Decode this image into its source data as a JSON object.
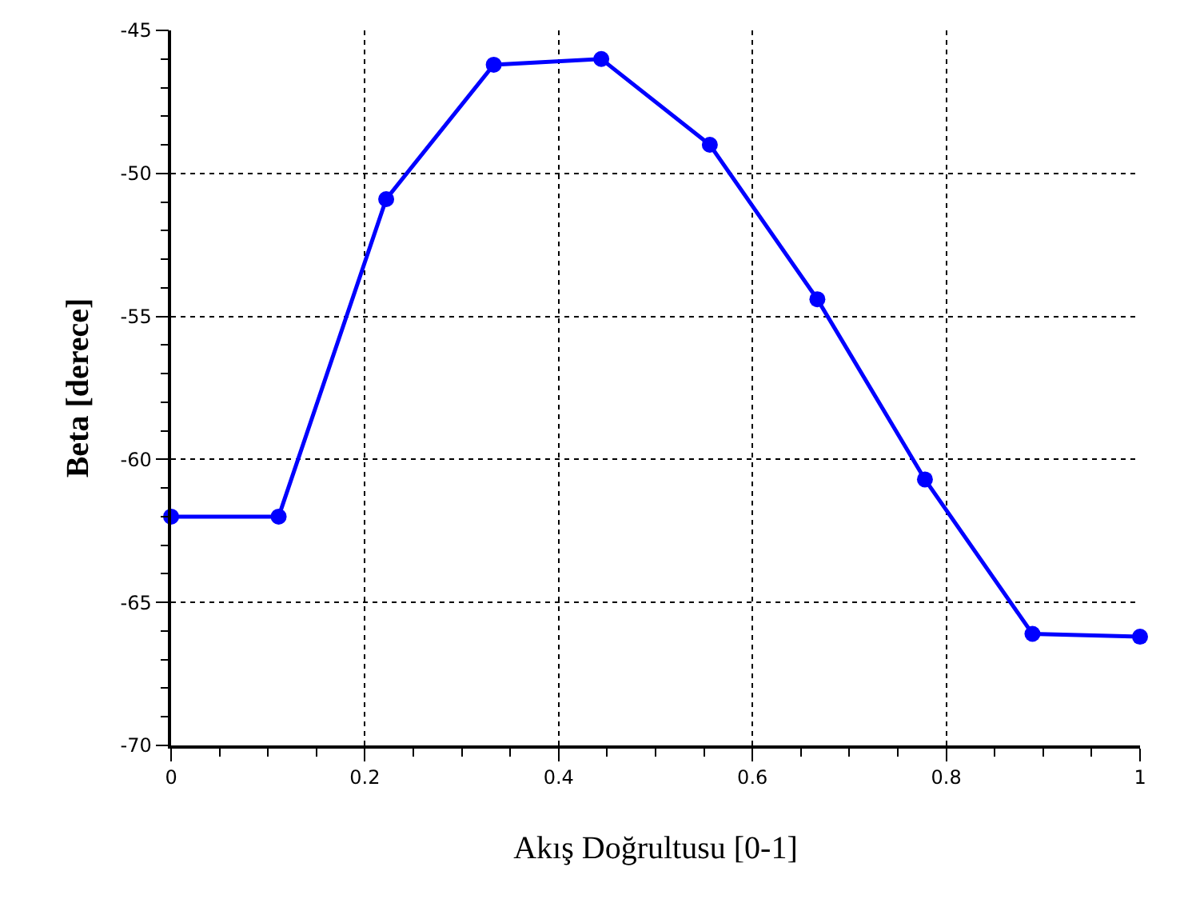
{
  "chart_data": {
    "type": "line",
    "xlabel": "Akış Doğrultusu [0-1]",
    "ylabel": "Beta [derece]",
    "x": [
      0,
      0.111,
      0.222,
      0.333,
      0.444,
      0.556,
      0.667,
      0.778,
      0.889,
      1
    ],
    "series": [
      {
        "color": "#0000ff",
        "values": [
          -62.0,
          -62.0,
          -50.9,
          -46.2,
          -46.0,
          -49.0,
          -54.4,
          -60.7,
          -66.1,
          -66.2
        ]
      }
    ],
    "xlim": [
      0,
      1
    ],
    "xticks": [
      0,
      0.2,
      0.4,
      0.6,
      0.8,
      1
    ],
    "ylim": [
      -70,
      -45
    ],
    "yticks": [
      -70,
      -65,
      -60,
      -55,
      -50,
      -45
    ],
    "grid": true,
    "marker": "circle",
    "line_style": "solid"
  }
}
